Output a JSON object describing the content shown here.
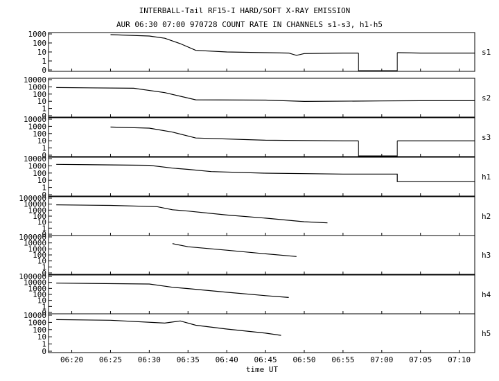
{
  "title_line1": "INTERBALL-Tail RF15-I HARD/SOFT X-RAY EMISSION",
  "title_line2": "AUR 06:30 07:00 970728  COUNT RATE IN CHANNELS s1-s3, h1-h5",
  "x_axis_label": "time UT",
  "chart_data": {
    "type": "line",
    "title": "INTERBALL-Tail RF15-I HARD/SOFT X-RAY EMISSION",
    "subtitle": "AUR 06:30 07:00 970728  COUNT RATE IN CHANNELS s1-s3, h1-h5",
    "xlabel": "time UT",
    "xlim": [
      "06:17",
      "07:12"
    ],
    "x_tick_labels": [
      "06:20",
      "06:25",
      "06:30",
      "06:35",
      "06:40",
      "06:45",
      "06:50",
      "06:55",
      "07:00",
      "07:05",
      "07:10"
    ],
    "y_scale": "log",
    "grid": false,
    "series": [
      {
        "name": "s1",
        "y_tick_labels": [
          "1000",
          "100",
          "10",
          "1",
          "0"
        ],
        "points": [
          [
            "06:25",
            1000
          ],
          [
            "06:30",
            700
          ],
          [
            "06:32",
            400
          ],
          [
            "06:34",
            100
          ],
          [
            "06:36",
            18
          ],
          [
            "06:40",
            12
          ],
          [
            "06:45",
            10
          ],
          [
            "06:48",
            9
          ],
          [
            "06:49",
            5
          ],
          [
            "06:50",
            8
          ],
          [
            "06:55",
            9
          ],
          [
            "06:57",
            9
          ]
        ],
        "gap": [
          "06:57",
          "07:02"
        ],
        "points_after_gap": [
          [
            "07:02",
            10
          ],
          [
            "07:05",
            9
          ],
          [
            "07:10",
            9
          ],
          [
            "07:12",
            9
          ]
        ]
      },
      {
        "name": "s2",
        "y_tick_labels": [
          "10000",
          "1000",
          "100",
          "10",
          "1",
          "0"
        ],
        "points": [
          [
            "06:18",
            1000
          ],
          [
            "06:28",
            800
          ],
          [
            "06:32",
            200
          ],
          [
            "06:36",
            20
          ],
          [
            "06:45",
            18
          ],
          [
            "06:50",
            12
          ],
          [
            "07:00",
            14
          ],
          [
            "07:05",
            15
          ],
          [
            "07:12",
            15
          ]
        ]
      },
      {
        "name": "s3",
        "y_tick_labels": [
          "10000",
          "1000",
          "100",
          "10",
          "1",
          "0"
        ],
        "points": [
          [
            "06:25",
            1000
          ],
          [
            "06:30",
            700
          ],
          [
            "06:33",
            200
          ],
          [
            "06:36",
            30
          ],
          [
            "06:45",
            15
          ],
          [
            "06:55",
            12
          ],
          [
            "06:57",
            12
          ]
        ],
        "gap": [
          "06:57",
          "07:02"
        ],
        "points_after_gap": [
          [
            "07:02",
            12
          ],
          [
            "07:07",
            12
          ],
          [
            "07:12",
            12
          ]
        ]
      },
      {
        "name": "h1",
        "y_tick_labels": [
          "10000",
          "1000",
          "100",
          "10",
          "1",
          "0"
        ],
        "points": [
          [
            "06:18",
            2000
          ],
          [
            "06:30",
            1500
          ],
          [
            "06:33",
            600
          ],
          [
            "06:35",
            400
          ],
          [
            "06:38",
            200
          ],
          [
            "06:45",
            120
          ],
          [
            "06:55",
            90
          ],
          [
            "07:02",
            90
          ],
          [
            "07:02",
            8
          ],
          [
            "07:12",
            8
          ]
        ]
      },
      {
        "name": "h2",
        "y_tick_labels": [
          "100000",
          "10000",
          "1000",
          "100",
          "10",
          "1",
          "0"
        ],
        "points": [
          [
            "06:18",
            10000
          ],
          [
            "06:25",
            8000
          ],
          [
            "06:31",
            5000
          ],
          [
            "06:33",
            1500
          ],
          [
            "06:35",
            900
          ],
          [
            "06:40",
            200
          ],
          [
            "06:45",
            60
          ],
          [
            "06:50",
            15
          ],
          [
            "06:53",
            10
          ]
        ]
      },
      {
        "name": "h3",
        "y_tick_labels": [
          "100000",
          "10000",
          "1000",
          "100",
          "10",
          "1",
          "0"
        ],
        "points": [
          [
            "06:33",
            10000
          ],
          [
            "06:35",
            3000
          ],
          [
            "06:40",
            800
          ],
          [
            "06:45",
            200
          ],
          [
            "06:49",
            70
          ]
        ]
      },
      {
        "name": "h4",
        "y_tick_labels": [
          "100000",
          "10000",
          "1000",
          "100",
          "10",
          "1",
          "0"
        ],
        "points": [
          [
            "06:18",
            10000
          ],
          [
            "06:30",
            7000
          ],
          [
            "06:33",
            2000
          ],
          [
            "06:35",
            1200
          ],
          [
            "06:40",
            300
          ],
          [
            "06:45",
            80
          ],
          [
            "06:48",
            40
          ]
        ]
      },
      {
        "name": "h5",
        "y_tick_labels": [
          "10000",
          "1000",
          "100",
          "10",
          "1",
          "0"
        ],
        "points": [
          [
            "06:18",
            3000
          ],
          [
            "06:25",
            2500
          ],
          [
            "06:32",
            1000
          ],
          [
            "06:34",
            2000
          ],
          [
            "06:36",
            500
          ],
          [
            "06:40",
            150
          ],
          [
            "06:45",
            40
          ],
          [
            "06:47",
            20
          ]
        ]
      }
    ]
  }
}
